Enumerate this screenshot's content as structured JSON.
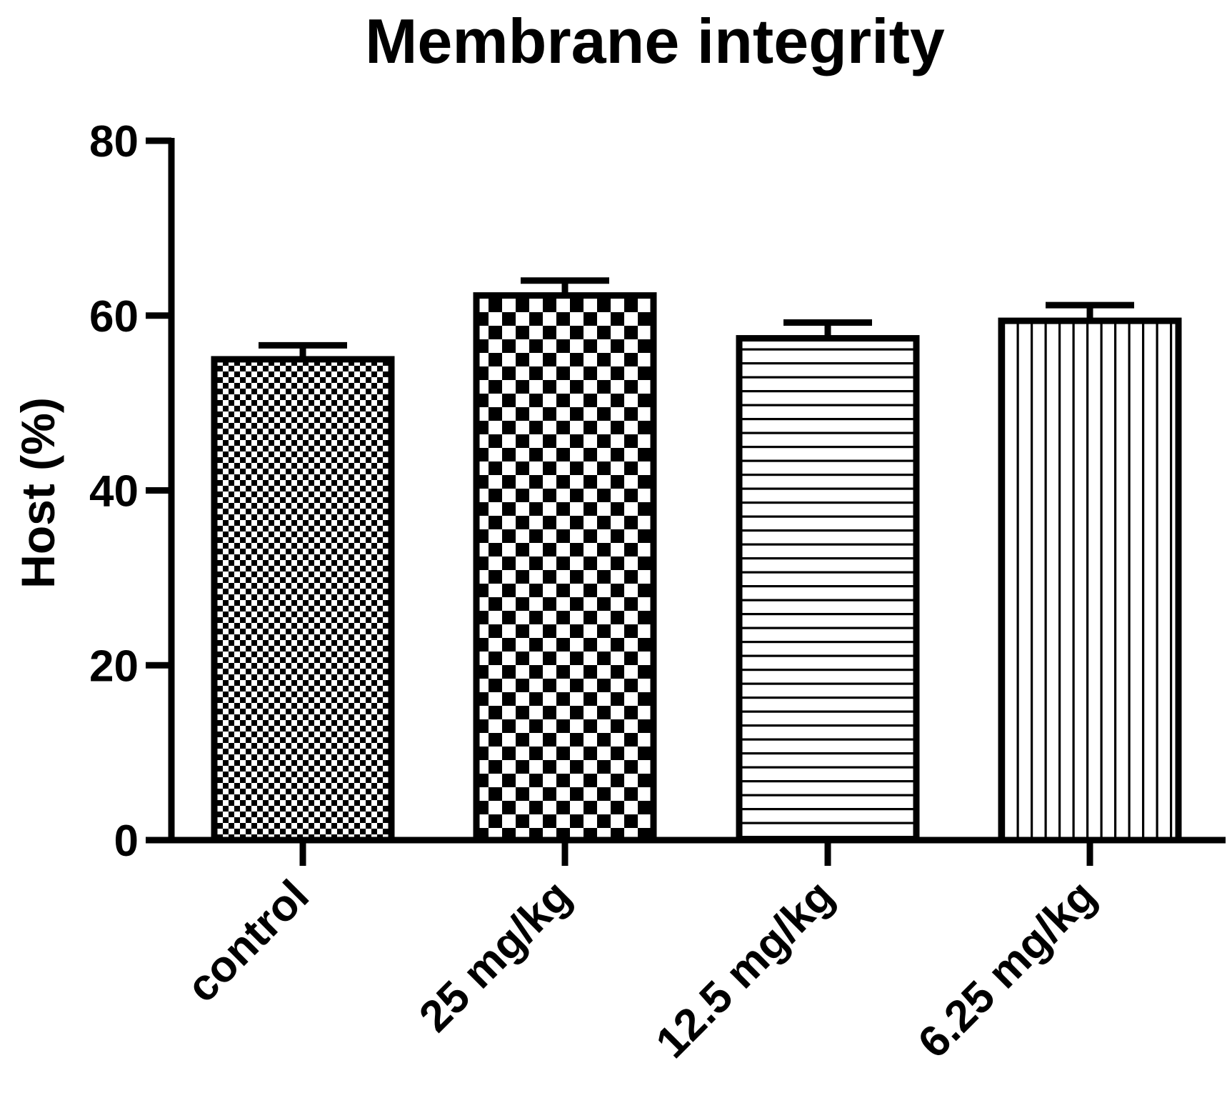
{
  "chart_data": {
    "type": "bar",
    "title": "Membrane integrity",
    "xlabel": "",
    "ylabel": "Host (%)",
    "ylim": [
      0,
      80
    ],
    "yticks": [
      0,
      20,
      40,
      60,
      80
    ],
    "categories": [
      "control",
      "25 mg/kg",
      "12.5 mg/kg",
      "6.25 mg/kg"
    ],
    "values": [
      55.0,
      62.3,
      57.4,
      59.4
    ],
    "errors": [
      1.6,
      1.7,
      1.8,
      1.8
    ],
    "patterns": [
      "fine-checker",
      "coarse-checker",
      "horizontal-lines",
      "vertical-lines"
    ],
    "grid": false,
    "legend": "none",
    "colors": {
      "ink": "#000000",
      "background": "#ffffff"
    }
  }
}
